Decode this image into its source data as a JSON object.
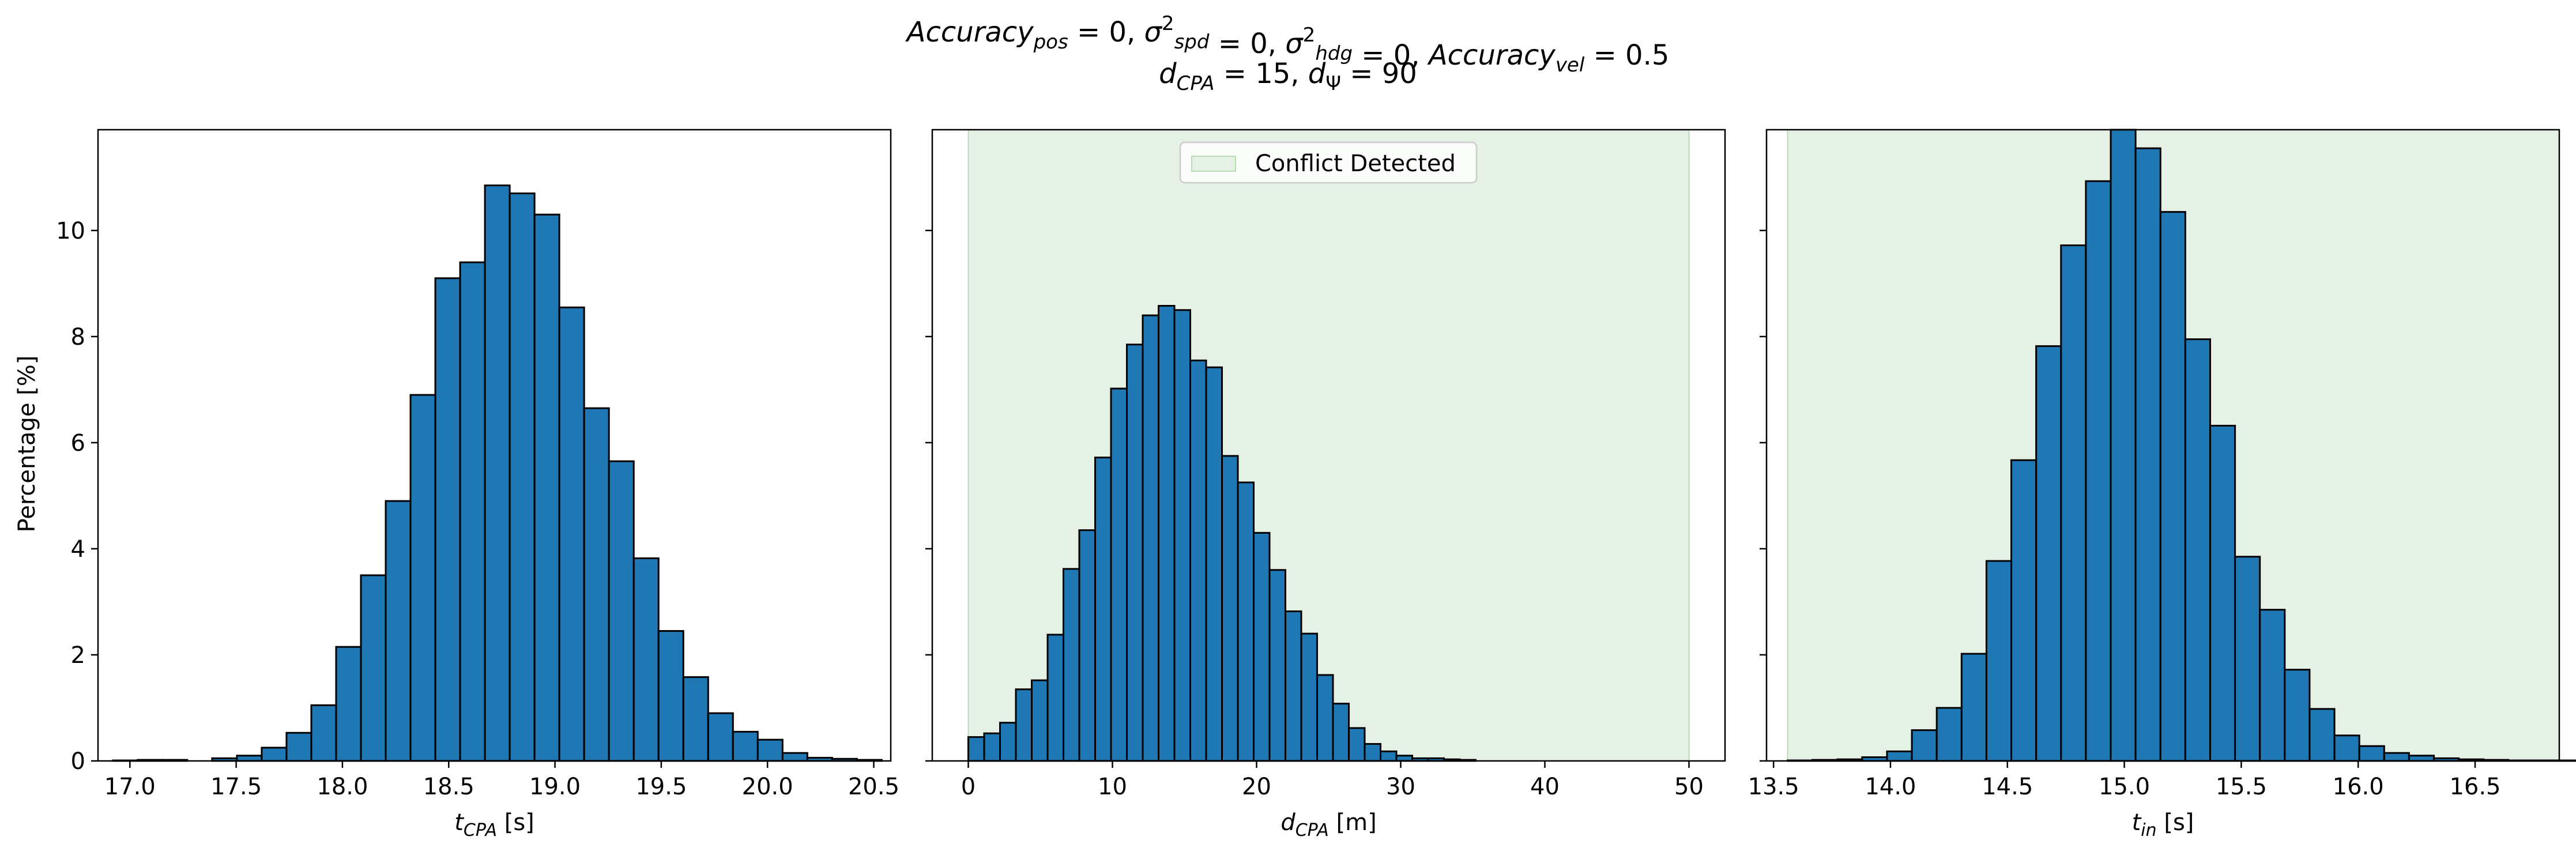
{
  "figure": {
    "title_line1": "Accuracy_pos = 0, σ²_spd = 0, σ²_hdg = 0, Accuracy_vel = 0.5",
    "title_line2": "d_CPA = 15, d_Ψ = 90",
    "shared_ylabel": "Percentage [%]"
  },
  "colors": {
    "bar_fill": "#1f77b4",
    "bar_edge": "#000000",
    "conflict_fill": "#e5f1e4",
    "conflict_edge": "#b7dbb5"
  },
  "chart_data": [
    {
      "type": "bar",
      "xlabel": "t_CPA [s]",
      "ylabel": "Percentage [%]",
      "xlim": [
        16.85,
        20.58
      ],
      "ylim": [
        0,
        11.9
      ],
      "xticks": [
        "17.0",
        "17.5",
        "18.0",
        "18.5",
        "19.0",
        "19.5",
        "20.0",
        "20.5"
      ],
      "yticks": [
        "0",
        "2",
        "4",
        "6",
        "8",
        "10"
      ],
      "bin_start": 16.92,
      "bin_width": 0.1167,
      "values": [
        0.01,
        0.02,
        0.02,
        0.0,
        0.05,
        0.1,
        0.25,
        0.53,
        1.05,
        2.15,
        3.5,
        4.9,
        6.9,
        9.1,
        9.4,
        10.85,
        10.7,
        10.3,
        8.55,
        6.65,
        5.65,
        3.82,
        2.45,
        1.58,
        0.9,
        0.55,
        0.4,
        0.15,
        0.06,
        0.04,
        0.02
      ],
      "grid": false
    },
    {
      "type": "bar",
      "xlabel": "d_CPA [m]",
      "xlim": [
        -2.5,
        52.5
      ],
      "ylim": [
        0,
        11.9
      ],
      "xticks": [
        "0",
        "10",
        "20",
        "30",
        "40",
        "50"
      ],
      "yticks": [
        "0",
        "2",
        "4",
        "6",
        "8",
        "10"
      ],
      "bin_start": 0,
      "bin_width": 1.1,
      "values": [
        0.45,
        0.52,
        0.72,
        1.35,
        1.52,
        2.38,
        3.62,
        4.35,
        5.72,
        7.02,
        7.85,
        8.4,
        8.58,
        8.5,
        7.55,
        7.42,
        5.75,
        5.25,
        4.3,
        3.6,
        2.82,
        2.4,
        1.62,
        1.08,
        0.62,
        0.32,
        0.18,
        0.1,
        0.05,
        0.05,
        0.03,
        0.02
      ],
      "shaded_region": {
        "x0": 0,
        "x1": 50,
        "label": "Conflict Detected"
      },
      "legend": {
        "position": "top-center",
        "entries": [
          "Conflict Detected"
        ]
      },
      "grid": false
    },
    {
      "type": "bar",
      "xlabel": "t_in [s]",
      "xlim": [
        13.47,
        16.86
      ],
      "ylim": [
        0,
        11.9
      ],
      "xticks": [
        "13.5",
        "14.0",
        "14.5",
        "15.0",
        "15.5",
        "16.0",
        "16.5"
      ],
      "yticks": [
        "0",
        "2",
        "4",
        "6",
        "8",
        "10"
      ],
      "bin_start": 13.56,
      "bin_width": 0.1063,
      "values": [
        0.01,
        0.02,
        0.03,
        0.07,
        0.18,
        0.58,
        1.0,
        2.02,
        3.77,
        5.67,
        7.82,
        9.72,
        10.93,
        11.9,
        11.55,
        10.35,
        7.95,
        6.32,
        3.85,
        2.85,
        1.72,
        0.98,
        0.48,
        0.28,
        0.15,
        0.1,
        0.05,
        0.03,
        0.02,
        0.01,
        0.01,
        0.01
      ],
      "shaded_region": {
        "x0": 13.56,
        "x1": 16.86
      },
      "grid": false
    }
  ]
}
